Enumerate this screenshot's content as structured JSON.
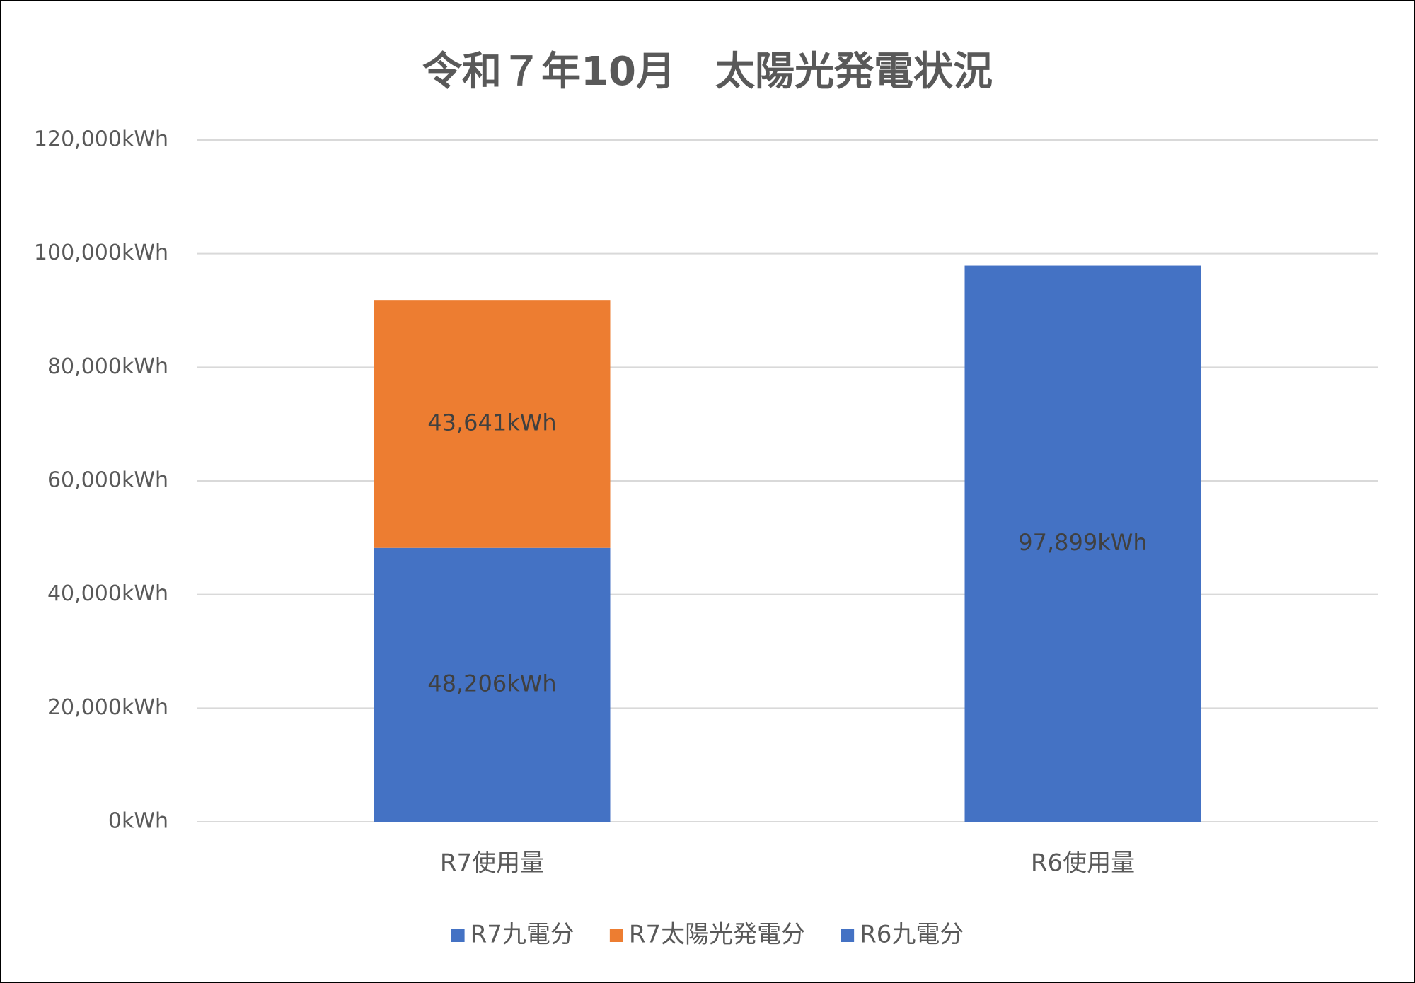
{
  "chart_data": {
    "type": "stacked-bar",
    "title": "令和７年10月　太陽光発電状況",
    "categories": [
      "R7使用量",
      "R6使用量"
    ],
    "series": [
      {
        "name": "R7九電分",
        "color": "#4472c4",
        "values": [
          48206,
          null
        ],
        "value_labels": [
          "48,206kWh",
          null
        ]
      },
      {
        "name": "R7太陽光発電分",
        "color": "#ed7d31",
        "values": [
          43641,
          null
        ],
        "value_labels": [
          "43,641kWh",
          null
        ]
      },
      {
        "name": "R6九電分",
        "color": "#4472c4",
        "values": [
          null,
          97899
        ],
        "value_labels": [
          null,
          "97,899kWh"
        ]
      }
    ],
    "ylim": [
      0,
      120000
    ],
    "yticks": [
      {
        "value": 0,
        "label": "0kWh"
      },
      {
        "value": 20000,
        "label": "20,000kWh"
      },
      {
        "value": 40000,
        "label": "40,000kWh"
      },
      {
        "value": 60000,
        "label": "60,000kWh"
      },
      {
        "value": 80000,
        "label": "80,000kWh"
      },
      {
        "value": 100000,
        "label": "100,000kWh"
      },
      {
        "value": 120000,
        "label": "120,000kWh"
      }
    ],
    "grid": true,
    "legend": "bottom"
  }
}
